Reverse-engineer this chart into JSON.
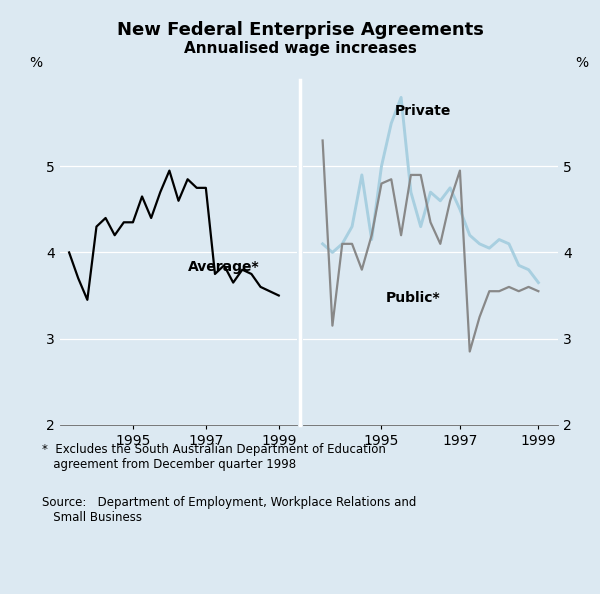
{
  "title": "New Federal Enterprise Agreements",
  "subtitle": "Annualised wage increases",
  "background_color": "#dce9f2",
  "plot_bg_color": "#dce9f2",
  "ylim": [
    2,
    6
  ],
  "yticks": [
    2,
    3,
    4,
    5
  ],
  "ylabel_left": "%",
  "ylabel_right": "%",
  "avg_x": [
    1993.25,
    1993.5,
    1993.75,
    1994.0,
    1994.25,
    1994.5,
    1994.75,
    1995.0,
    1995.25,
    1995.5,
    1995.75,
    1996.0,
    1996.25,
    1996.5,
    1996.75,
    1997.0,
    1997.25,
    1997.5,
    1997.75,
    1998.0,
    1998.25,
    1998.5,
    1998.75,
    1999.0
  ],
  "avg_y": [
    4.0,
    3.7,
    3.45,
    4.3,
    4.4,
    4.2,
    4.35,
    4.35,
    4.65,
    4.4,
    4.7,
    4.95,
    4.6,
    4.85,
    4.75,
    4.75,
    3.75,
    3.85,
    3.65,
    3.8,
    3.75,
    3.6,
    3.55,
    3.5
  ],
  "private_x": [
    1993.5,
    1993.75,
    1994.0,
    1994.25,
    1994.5,
    1994.75,
    1995.0,
    1995.25,
    1995.5,
    1995.75,
    1996.0,
    1996.25,
    1996.5,
    1996.75,
    1997.0,
    1997.25,
    1997.5,
    1997.75,
    1998.0,
    1998.25,
    1998.5,
    1998.75,
    1999.0
  ],
  "private_y": [
    4.1,
    4.0,
    4.1,
    4.3,
    4.9,
    4.15,
    5.0,
    5.5,
    5.8,
    4.7,
    4.3,
    4.7,
    4.6,
    4.75,
    4.5,
    4.2,
    4.1,
    4.05,
    4.15,
    4.1,
    3.85,
    3.8,
    3.65
  ],
  "public_x": [
    1993.5,
    1993.75,
    1994.0,
    1994.25,
    1994.5,
    1994.75,
    1995.0,
    1995.25,
    1995.5,
    1995.75,
    1996.0,
    1996.25,
    1996.5,
    1996.75,
    1997.0,
    1997.25,
    1997.5,
    1997.75,
    1998.0,
    1998.25,
    1998.5,
    1998.75,
    1999.0
  ],
  "public_y": [
    5.3,
    3.15,
    4.1,
    4.1,
    3.8,
    4.2,
    4.8,
    4.85,
    4.2,
    4.9,
    4.9,
    4.35,
    4.1,
    4.6,
    4.95,
    2.85,
    3.25,
    3.55,
    3.55,
    3.6,
    3.55,
    3.6,
    3.55
  ],
  "avg_color": "#000000",
  "private_color": "#a8cfe0",
  "public_color": "#888888",
  "avg_label": "Average*",
  "private_label": "Private",
  "public_label": "Public*",
  "footnote1": "*  Excludes the South Australian Department of Education\n   agreement from December quarter 1998",
  "footnote2": "Source:   Department of Employment, Workplace Relations and\n   Small Business",
  "line_width": 1.6
}
